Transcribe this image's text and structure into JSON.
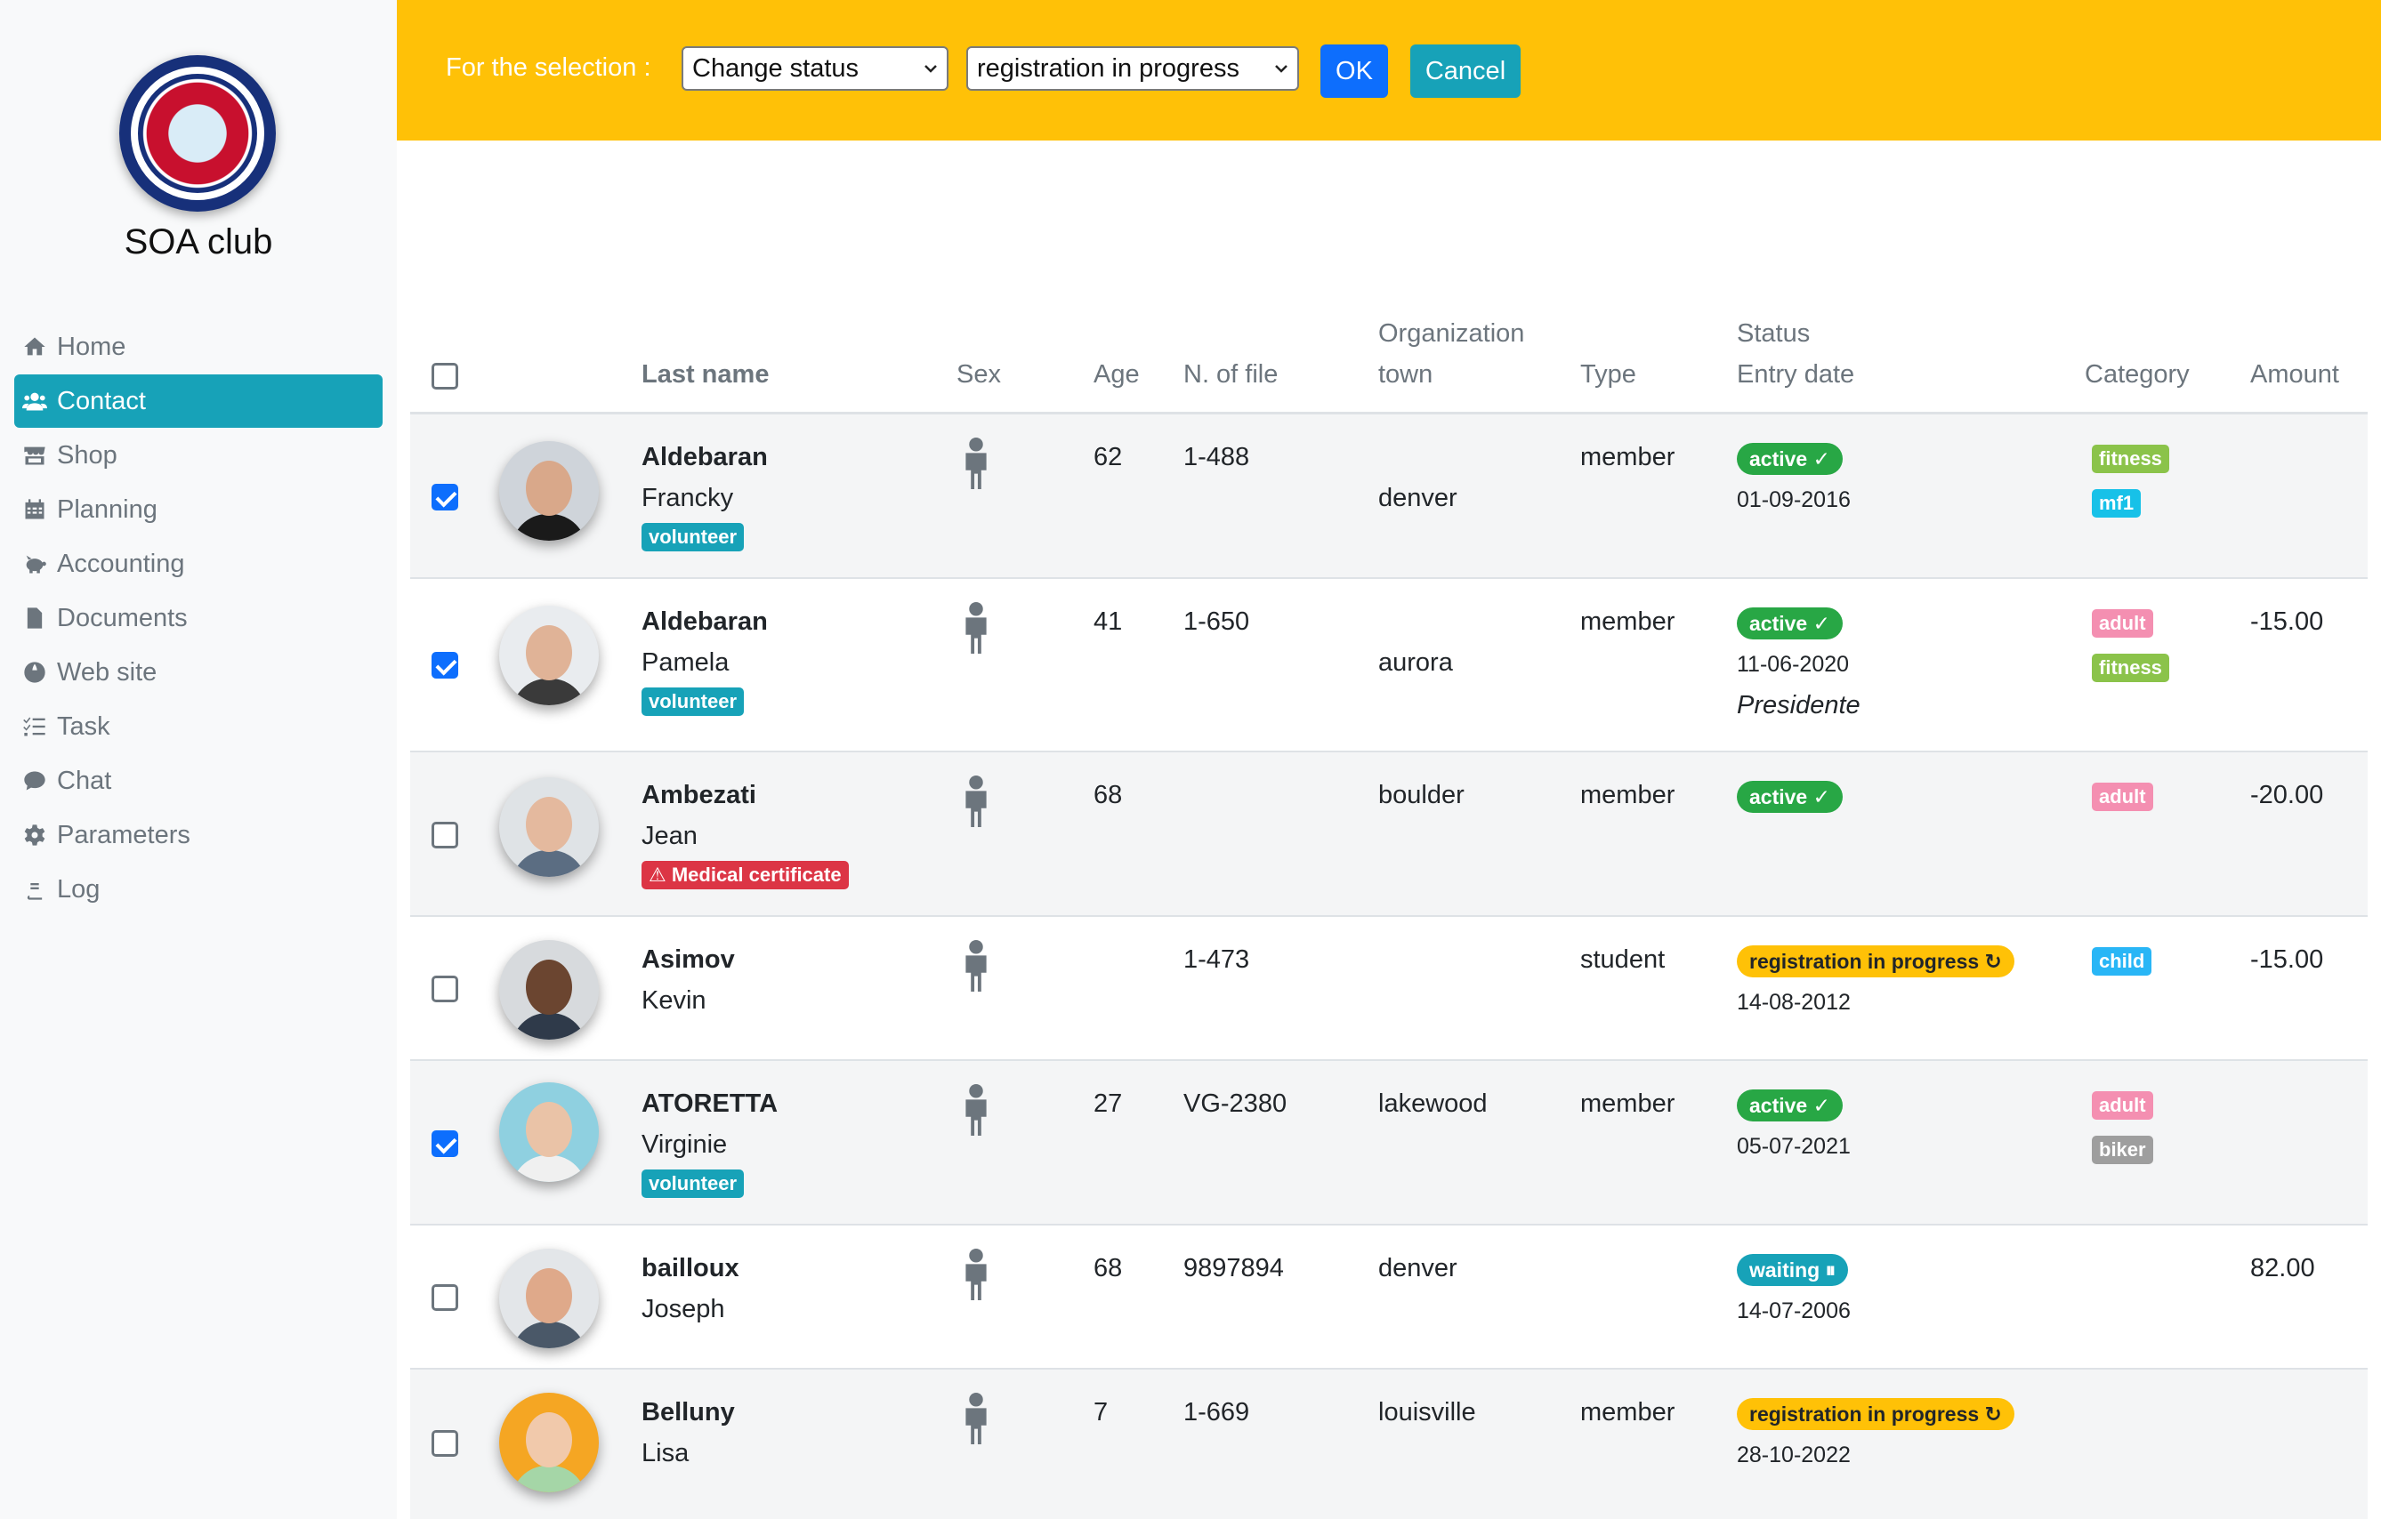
{
  "sidebar": {
    "club_name": "SOA club",
    "items": [
      {
        "label": "Home",
        "icon": "home-icon",
        "active": false
      },
      {
        "label": "Contact",
        "icon": "users-icon",
        "active": true
      },
      {
        "label": "Shop",
        "icon": "store-icon",
        "active": false
      },
      {
        "label": "Planning",
        "icon": "calendar-icon",
        "active": false
      },
      {
        "label": "Accounting",
        "icon": "piggy-bank-icon",
        "active": false
      },
      {
        "label": "Documents",
        "icon": "file-icon",
        "active": false
      },
      {
        "label": "Web site",
        "icon": "globe-icon",
        "active": false
      },
      {
        "label": "Task",
        "icon": "tasks-icon",
        "active": false
      },
      {
        "label": "Chat",
        "icon": "chat-icon",
        "active": false
      },
      {
        "label": "Parameters",
        "icon": "gear-icon",
        "active": false
      },
      {
        "label": "Log",
        "icon": "book-icon",
        "active": false
      }
    ]
  },
  "actionbar": {
    "label": "For the selection :",
    "action_select": "Change status",
    "value_select": "registration in progress",
    "ok": "OK",
    "cancel": "Cancel"
  },
  "table": {
    "headers": {
      "last_name": "Last name",
      "sex": "Sex",
      "age": "Age",
      "file": "N. of file",
      "org_line1": "Organization",
      "org_line2": "town",
      "type": "Type",
      "status_line1": "Status",
      "status_line2": "Entry date",
      "category": "Category",
      "amount": "Amount"
    },
    "rows": [
      {
        "checked": true,
        "last": "Aldebaran",
        "first": "Francky",
        "tag": "volunteer",
        "age": "62",
        "file": "1-488",
        "town": "denver",
        "type": "member",
        "status": "active ✓",
        "date": "01-09-2016",
        "role": "",
        "cats": [
          "fitness",
          "mf1"
        ],
        "amount": ""
      },
      {
        "checked": true,
        "last": "Aldebaran",
        "first": "Pamela",
        "tag": "volunteer",
        "age": "41",
        "file": "1-650",
        "town": "aurora",
        "type": "member",
        "status": "active ✓",
        "date": "11-06-2020",
        "role": "Presidente",
        "cats": [
          "adult",
          "fitness"
        ],
        "amount": "-15.00"
      },
      {
        "checked": false,
        "last": "Ambezati",
        "first": "Jean",
        "tag": "⚠ Medical certificate",
        "age": "68",
        "file": "",
        "town": "boulder",
        "type": "member",
        "status": "active ✓",
        "date": "",
        "role": "",
        "cats": [
          "adult"
        ],
        "amount": "-20.00"
      },
      {
        "checked": false,
        "last": "Asimov",
        "first": "Kevin",
        "tag": "",
        "age": "",
        "file": "1-473",
        "town": "",
        "type": "student",
        "status": "registration in progress ↻",
        "date": "14-08-2012",
        "role": "",
        "cats": [
          "child"
        ],
        "amount": "-15.00"
      },
      {
        "checked": true,
        "last": "ATORETTA",
        "first": "Virginie",
        "tag": "volunteer",
        "age": "27",
        "file": "VG-2380",
        "town": "lakewood",
        "type": "member",
        "status": "active ✓",
        "date": "05-07-2021",
        "role": "",
        "cats": [
          "adult",
          "biker"
        ],
        "amount": ""
      },
      {
        "checked": false,
        "last": "bailloux",
        "first": "Joseph",
        "tag": "",
        "age": "68",
        "file": "9897894",
        "town": "denver",
        "type": "",
        "status": "waiting ⏸",
        "date": "14-07-2006",
        "role": "",
        "cats": [],
        "amount": "82.00"
      },
      {
        "checked": false,
        "last": "Belluny",
        "first": "Lisa",
        "tag": "",
        "age": "7",
        "file": "1-669",
        "town": "louisville",
        "type": "member",
        "status": "registration in progress ↻",
        "date": "28-10-2022",
        "role": "",
        "cats": [],
        "amount": ""
      }
    ]
  },
  "colors": {
    "accent": "#17a2b8",
    "warning": "#ffc107",
    "success": "#28a745",
    "danger": "#dc3545",
    "primary": "#0d6efd",
    "cat_fitness": "#8bc34a",
    "cat_mf1": "#17c1e8",
    "cat_adult": "#f48fb1",
    "cat_child": "#29b6f6",
    "cat_biker": "#9e9e9e"
  }
}
